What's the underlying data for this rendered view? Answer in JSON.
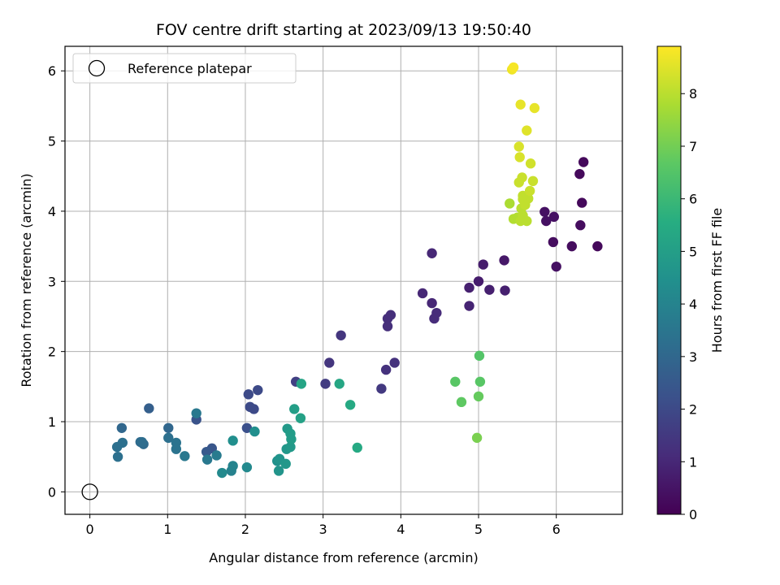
{
  "chart_data": {
    "type": "scatter",
    "title": "FOV centre drift starting at 2023/09/13 19:50:40",
    "xlabel": "Angular distance from reference (arcmin)",
    "ylabel": "Rotation from reference (arcmin)",
    "xlim": [
      -0.32,
      6.85
    ],
    "ylim": [
      -0.32,
      6.35
    ],
    "xticks": [
      0,
      1,
      2,
      3,
      4,
      5,
      6
    ],
    "yticks": [
      0,
      1,
      2,
      3,
      4,
      5,
      6
    ],
    "grid": true,
    "legend": {
      "placement": "top-left",
      "entries": [
        "Reference platepar"
      ]
    },
    "reference_point": {
      "x": 0,
      "y": 0
    },
    "colorbar": {
      "label": "Hours from first FF file",
      "range": [
        0,
        8.9
      ],
      "ticks": [
        0,
        1,
        2,
        3,
        4,
        5,
        6,
        7,
        8
      ],
      "colormap": "viridis"
    },
    "points": [
      [
        6.35,
        4.7,
        0.2
      ],
      [
        6.3,
        4.53,
        0.2
      ],
      [
        6.33,
        4.12,
        0.2
      ],
      [
        6.31,
        3.8,
        0.3
      ],
      [
        6.53,
        3.5,
        0.2
      ],
      [
        6.2,
        3.5,
        0.3
      ],
      [
        5.96,
        3.56,
        0.3
      ],
      [
        6.0,
        3.21,
        0.4
      ],
      [
        5.85,
        3.99,
        0.4
      ],
      [
        5.97,
        3.92,
        0.4
      ],
      [
        5.87,
        3.86,
        0.4
      ],
      [
        5.33,
        3.3,
        0.6
      ],
      [
        5.06,
        3.24,
        0.7
      ],
      [
        5.0,
        3.0,
        0.7
      ],
      [
        4.88,
        2.91,
        0.8
      ],
      [
        5.14,
        2.88,
        0.8
      ],
      [
        5.34,
        2.87,
        0.8
      ],
      [
        4.88,
        2.65,
        0.9
      ],
      [
        4.4,
        3.4,
        1.0
      ],
      [
        4.28,
        2.83,
        1.0
      ],
      [
        4.4,
        2.69,
        1.0
      ],
      [
        4.46,
        2.55,
        1.1
      ],
      [
        4.43,
        2.47,
        1.1
      ],
      [
        3.87,
        2.52,
        1.2
      ],
      [
        3.83,
        2.47,
        1.2
      ],
      [
        3.83,
        2.36,
        1.2
      ],
      [
        3.23,
        2.23,
        1.4
      ],
      [
        3.08,
        1.84,
        1.4
      ],
      [
        3.92,
        1.84,
        1.3
      ],
      [
        3.81,
        1.74,
        1.3
      ],
      [
        3.75,
        1.47,
        1.5
      ],
      [
        3.03,
        1.54,
        1.6
      ],
      [
        2.65,
        1.57,
        1.7
      ],
      [
        2.16,
        1.45,
        2.0
      ],
      [
        2.04,
        1.39,
        2.0
      ],
      [
        2.06,
        1.21,
        2.0
      ],
      [
        2.11,
        1.18,
        2.0
      ],
      [
        2.02,
        0.91,
        2.2
      ],
      [
        1.37,
        1.03,
        2.3
      ],
      [
        1.57,
        0.62,
        2.4
      ],
      [
        1.5,
        0.57,
        2.5
      ],
      [
        0.76,
        1.19,
        2.7
      ],
      [
        0.41,
        0.91,
        3.0
      ],
      [
        1.01,
        0.91,
        3.0
      ],
      [
        0.65,
        0.71,
        3.1
      ],
      [
        0.69,
        0.68,
        3.1
      ],
      [
        0.67,
        0.71,
        3.2
      ],
      [
        0.42,
        0.7,
        3.3
      ],
      [
        0.35,
        0.64,
        3.3
      ],
      [
        0.36,
        0.5,
        3.3
      ],
      [
        1.01,
        0.77,
        3.3
      ],
      [
        1.11,
        0.7,
        3.4
      ],
      [
        1.11,
        0.61,
        3.4
      ],
      [
        1.37,
        1.12,
        3.6
      ],
      [
        1.22,
        0.51,
        3.6
      ],
      [
        1.51,
        0.46,
        3.6
      ],
      [
        1.63,
        0.52,
        3.7
      ],
      [
        1.82,
        0.3,
        3.9
      ],
      [
        1.84,
        0.37,
        4.0
      ],
      [
        1.7,
        0.27,
        4.2
      ],
      [
        2.02,
        0.35,
        4.2
      ],
      [
        1.84,
        0.73,
        4.4
      ],
      [
        2.12,
        0.86,
        4.4
      ],
      [
        2.41,
        0.44,
        4.5
      ],
      [
        2.43,
        0.3,
        4.6
      ],
      [
        2.44,
        0.47,
        4.6
      ],
      [
        2.52,
        0.4,
        4.7
      ],
      [
        2.53,
        0.61,
        4.7
      ],
      [
        2.58,
        0.64,
        4.8
      ],
      [
        2.54,
        0.9,
        4.8
      ],
      [
        2.59,
        0.75,
        4.9
      ],
      [
        2.58,
        0.83,
        4.9
      ],
      [
        2.63,
        1.18,
        5.0
      ],
      [
        2.71,
        1.05,
        5.1
      ],
      [
        2.72,
        1.54,
        5.2
      ],
      [
        3.21,
        1.54,
        5.3
      ],
      [
        3.35,
        1.24,
        5.4
      ],
      [
        3.44,
        0.63,
        5.4
      ],
      [
        5.01,
        1.94,
        6.5
      ],
      [
        4.7,
        1.57,
        6.6
      ],
      [
        5.02,
        1.57,
        6.6
      ],
      [
        4.78,
        1.28,
        6.7
      ],
      [
        5.0,
        1.36,
        6.8
      ],
      [
        4.98,
        0.77,
        7.1
      ],
      [
        5.4,
        4.11,
        7.8
      ],
      [
        5.45,
        3.89,
        7.9
      ],
      [
        5.5,
        3.91,
        7.9
      ],
      [
        5.54,
        3.86,
        8.0
      ],
      [
        5.57,
        3.94,
        8.0
      ],
      [
        5.62,
        3.86,
        8.0
      ],
      [
        5.55,
        4.04,
        8.0
      ],
      [
        5.6,
        4.09,
        8.1
      ],
      [
        5.57,
        4.17,
        8.1
      ],
      [
        5.64,
        4.18,
        8.1
      ],
      [
        5.57,
        4.22,
        8.1
      ],
      [
        5.66,
        4.29,
        8.2
      ],
      [
        5.52,
        4.41,
        8.2
      ],
      [
        5.56,
        4.48,
        8.2
      ],
      [
        5.7,
        4.43,
        8.2
      ],
      [
        5.67,
        4.68,
        8.3
      ],
      [
        5.53,
        4.77,
        8.4
      ],
      [
        5.52,
        4.92,
        8.4
      ],
      [
        5.62,
        5.15,
        8.5
      ],
      [
        5.72,
        5.47,
        8.6
      ],
      [
        5.54,
        5.52,
        8.6
      ],
      [
        5.43,
        6.02,
        8.7
      ],
      [
        5.45,
        6.05,
        8.8
      ]
    ]
  }
}
